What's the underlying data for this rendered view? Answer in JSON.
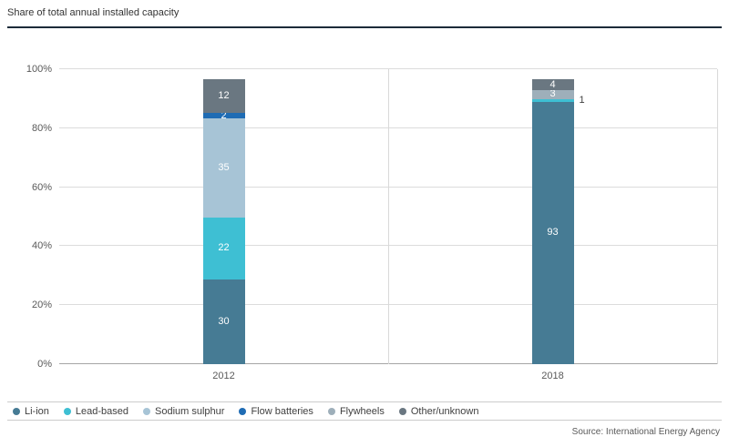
{
  "title": "Share of total annual installed capacity",
  "source": "Source: International Energy Agency",
  "chart_data": {
    "type": "bar",
    "stacked": true,
    "title": "Share of total annual installed capacity",
    "categories": [
      "2012",
      "2018"
    ],
    "series": [
      {
        "name": "Li-ion",
        "color": "#467b94",
        "values": [
          30,
          93
        ]
      },
      {
        "name": "Lead-based",
        "color": "#3ebfd3",
        "values": [
          22,
          1
        ]
      },
      {
        "name": "Sodium sulphur",
        "color": "#a7c4d6",
        "values": [
          35,
          0
        ]
      },
      {
        "name": "Flow batteries",
        "color": "#1f6cb4",
        "values": [
          2,
          0
        ]
      },
      {
        "name": "Flywheels",
        "color": "#9eafba",
        "values": [
          0,
          3
        ]
      },
      {
        "name": "Other/unknown",
        "color": "#6a7781",
        "values": [
          12,
          4
        ]
      }
    ],
    "y_ticks": [
      0,
      20,
      40,
      60,
      80,
      100
    ],
    "y_tick_labels": [
      "0%",
      "20%",
      "40%",
      "60%",
      "80%",
      "100%"
    ],
    "ylim": [
      0,
      100
    ],
    "grid": true,
    "legend_position": "bottom",
    "data_labels": "inside-white, values below 2 shown as outside callout"
  }
}
